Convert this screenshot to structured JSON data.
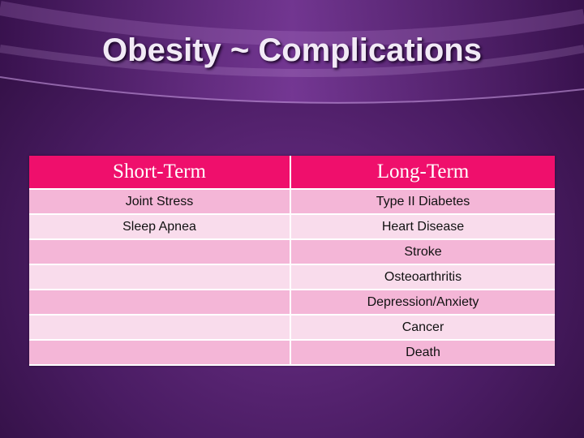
{
  "title": "Obesity ~ Complications",
  "table": {
    "columns": [
      {
        "header": "Short-Term",
        "items": [
          "Joint Stress",
          "Sleep Apnea"
        ]
      },
      {
        "header": "Long-Term",
        "items": [
          "Type II Diabetes",
          "Heart Disease",
          "Stroke",
          "Osteoarthritis",
          "Depression/Anxiety",
          "Cancer",
          "Death"
        ]
      }
    ]
  }
}
